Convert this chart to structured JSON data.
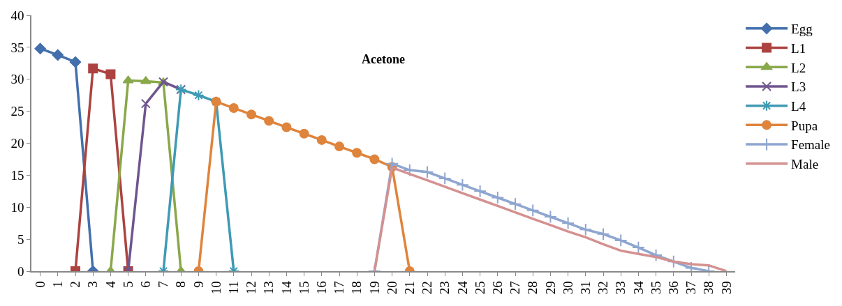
{
  "chart_data": {
    "type": "line",
    "title": "Acetone",
    "categories": [
      "0",
      "1",
      "2",
      "3",
      "4",
      "5",
      "6",
      "7",
      "8",
      "9",
      "10",
      "11",
      "12",
      "13",
      "14",
      "15",
      "16",
      "17",
      "18",
      "19",
      "20",
      "21",
      "22",
      "23",
      "24",
      "25",
      "26",
      "27",
      "28",
      "29",
      "30",
      "31",
      "32",
      "33",
      "34",
      "35",
      "36",
      "37",
      "38",
      "39"
    ],
    "ylim": [
      0,
      40
    ],
    "yticks": [
      0,
      5,
      10,
      15,
      20,
      25,
      30,
      35,
      40
    ],
    "legend": "right",
    "series": [
      {
        "name": "Egg",
        "color": "#4370ad",
        "marker": "diamond",
        "values": [
          34.8,
          33.8,
          32.7,
          0,
          null,
          null,
          null,
          null,
          null,
          null,
          null,
          null,
          null,
          null,
          null,
          null,
          null,
          null,
          null,
          null,
          null,
          null,
          null,
          null,
          null,
          null,
          null,
          null,
          null,
          null,
          null,
          null,
          null,
          null,
          null,
          null,
          null,
          null,
          null,
          null
        ]
      },
      {
        "name": "L1",
        "color": "#ac4340",
        "marker": "square",
        "values": [
          null,
          null,
          0,
          31.7,
          30.8,
          0,
          null,
          null,
          null,
          null,
          null,
          null,
          null,
          null,
          null,
          null,
          null,
          null,
          null,
          null,
          null,
          null,
          null,
          null,
          null,
          null,
          null,
          null,
          null,
          null,
          null,
          null,
          null,
          null,
          null,
          null,
          null,
          null,
          null,
          null
        ]
      },
      {
        "name": "L2",
        "color": "#89a84a",
        "marker": "triangle",
        "values": [
          null,
          null,
          null,
          null,
          0,
          29.8,
          29.7,
          29.5,
          0,
          null,
          null,
          null,
          null,
          null,
          null,
          null,
          null,
          null,
          null,
          null,
          null,
          null,
          null,
          null,
          null,
          null,
          null,
          null,
          null,
          null,
          null,
          null,
          null,
          null,
          null,
          null,
          null,
          null,
          null,
          null
        ]
      },
      {
        "name": "L3",
        "color": "#6f558f",
        "marker": "cross",
        "values": [
          null,
          null,
          null,
          null,
          null,
          0,
          26.2,
          29.6,
          28.4,
          null,
          null,
          null,
          null,
          null,
          null,
          null,
          null,
          null,
          null,
          null,
          null,
          null,
          null,
          null,
          null,
          null,
          null,
          null,
          null,
          null,
          null,
          null,
          null,
          null,
          null,
          null,
          null,
          null,
          null,
          null
        ]
      },
      {
        "name": "L4",
        "color": "#3f9ab4",
        "marker": "cross",
        "values": [
          null,
          null,
          null,
          null,
          null,
          null,
          null,
          0,
          28.4,
          27.5,
          26.5,
          0,
          null,
          null,
          null,
          null,
          null,
          null,
          null,
          null,
          null,
          null,
          null,
          null,
          null,
          null,
          null,
          null,
          null,
          null,
          null,
          null,
          null,
          null,
          null,
          null,
          null,
          null,
          null,
          null
        ]
      },
      {
        "name": "Pupa",
        "color": "#df843c",
        "marker": "circle",
        "values": [
          null,
          null,
          null,
          null,
          null,
          null,
          null,
          null,
          null,
          0,
          26.5,
          25.5,
          24.5,
          23.5,
          22.5,
          21.5,
          20.5,
          19.5,
          18.5,
          17.5,
          16.3,
          0,
          null,
          null,
          null,
          null,
          null,
          null,
          null,
          null,
          null,
          null,
          null,
          null,
          null,
          null,
          null,
          null,
          null,
          null
        ]
      },
      {
        "name": "Female",
        "color": "#8ea6d0",
        "marker": "cross",
        "values": [
          null,
          null,
          null,
          null,
          null,
          null,
          null,
          null,
          null,
          null,
          null,
          null,
          null,
          null,
          null,
          null,
          null,
          null,
          null,
          0,
          16.8,
          15.8,
          15.5,
          14.5,
          13.5,
          12.5,
          11.5,
          10.5,
          9.5,
          8.5,
          7.5,
          6.5,
          5.8,
          4.8,
          3.7,
          2.5,
          1.5,
          0.5,
          0,
          null
        ]
      },
      {
        "name": "Male",
        "color": "#d49190",
        "marker": "none",
        "values": [
          null,
          null,
          null,
          null,
          null,
          null,
          null,
          null,
          null,
          null,
          null,
          null,
          null,
          null,
          null,
          null,
          null,
          null,
          null,
          0,
          16.2,
          15.2,
          14.2,
          13.2,
          12.2,
          11.2,
          10.2,
          9.2,
          8.2,
          7.2,
          6.2,
          5.3,
          4.2,
          3.2,
          2.7,
          2.2,
          1.5,
          1.1,
          0.9,
          0
        ]
      }
    ]
  }
}
